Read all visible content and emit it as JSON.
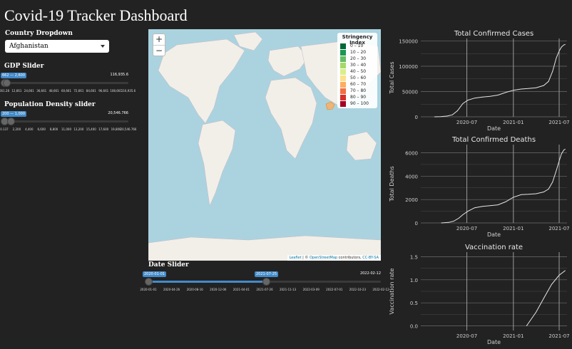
{
  "app": {
    "title": "Covid-19 Tracker Dashboard"
  },
  "country": {
    "label": "Country Dropdown",
    "selected": "Afghanistan"
  },
  "gdp": {
    "label": "GDP Slider",
    "range_badge": "662 — 2,600",
    "max_label": "116,935.6",
    "tick_labels": [
      "661.28",
      "12,661",
      "24,661",
      "36,661",
      "48,661",
      "60,661",
      "72,661",
      "84,661",
      "96,661",
      "108,661",
      "116,935.6"
    ],
    "range_fraction": [
      0.0,
      0.017
    ]
  },
  "popdensity": {
    "label": "Population Density slider",
    "range_badge": "200 — 1,000",
    "max_label": "20,546.766",
    "tick_labels": [
      "0.137",
      "2,200",
      "4,400",
      "6,600",
      "8,800",
      "11,000",
      "13,200",
      "15,400",
      "17,600",
      "19,800",
      "20,546.766"
    ],
    "range_fraction": [
      0.0,
      0.049
    ]
  },
  "date_slider": {
    "label": "Date Slider",
    "from_badge": "2020-01-01",
    "to_badge": "2021-07-25",
    "max_label": "2022-02-12",
    "tick_labels": [
      "2020-01-01",
      "2020-04-26",
      "2020-08-16",
      "2020-12-06",
      "2021-04-01",
      "2021-07-26",
      "2021-11-13",
      "2022-03-09",
      "2022-07-01",
      "2022-10-23",
      "2022-02-12"
    ],
    "range_fraction": [
      0.0,
      0.505
    ]
  },
  "map": {
    "zoom_in": "+",
    "zoom_out": "−",
    "legend": {
      "title": "Stringency Index",
      "items": [
        {
          "label": "0 – 10",
          "color": "#006837"
        },
        {
          "label": "10 – 20",
          "color": "#1a9850"
        },
        {
          "label": "20 – 30",
          "color": "#66bd63"
        },
        {
          "label": "30 – 40",
          "color": "#a6d96a"
        },
        {
          "label": "40 – 50",
          "color": "#d9ef8b"
        },
        {
          "label": "50 – 60",
          "color": "#fee08b"
        },
        {
          "label": "60 – 70",
          "color": "#fdae61"
        },
        {
          "label": "70 – 80",
          "color": "#f46d43"
        },
        {
          "label": "80 – 90",
          "color": "#d73027"
        },
        {
          "label": "90 – 100",
          "color": "#a50026"
        }
      ]
    },
    "attribution": {
      "leaflet": "Leaflet",
      "separator": " | © ",
      "osm": "OpenStreetMap",
      "contrib": " contributors, ",
      "license": "CC-BY-SA"
    },
    "highlight_color": "#fdae61",
    "water_color": "#aad3df",
    "land_color": "#f2efe9"
  },
  "chart_data": [
    {
      "type": "line",
      "title": "Total Confirmed Cases",
      "xlabel": "Date",
      "ylabel": "Total Cases",
      "xlim": [
        "2020-01-01",
        "2021-08-01"
      ],
      "ylim": [
        0,
        155000
      ],
      "yticks": [
        0,
        50000,
        100000,
        150000
      ],
      "ytick_labels": [
        "0",
        "50000",
        "100000",
        "150000"
      ],
      "xticks": [
        "2020-07-01",
        "2021-01-01",
        "2021-07-01"
      ],
      "xtick_labels": [
        "2020-07",
        "2021-01",
        "2021-07"
      ],
      "x": [
        "2020-02-24",
        "2020-03-20",
        "2020-04-15",
        "2020-05-05",
        "2020-05-25",
        "2020-06-15",
        "2020-07-05",
        "2020-08-01",
        "2020-09-01",
        "2020-10-01",
        "2020-11-01",
        "2020-12-01",
        "2021-01-01",
        "2021-02-01",
        "2021-03-01",
        "2021-04-01",
        "2021-05-01",
        "2021-05-20",
        "2021-06-05",
        "2021-06-20",
        "2021-07-01",
        "2021-07-10",
        "2021-07-20",
        "2021-07-25"
      ],
      "y": [
        1,
        300,
        1500,
        4000,
        12000,
        26000,
        33000,
        37000,
        39000,
        40500,
        43000,
        48000,
        52500,
        55000,
        56000,
        57500,
        62000,
        70000,
        90000,
        117000,
        130000,
        138000,
        142500,
        143000
      ],
      "grid": true
    },
    {
      "type": "line",
      "title": "Total Confirmed Deaths",
      "xlabel": "Date",
      "ylabel": "Total Deaths",
      "xlim": [
        "2020-01-01",
        "2021-08-01"
      ],
      "ylim": [
        0,
        6700
      ],
      "yticks": [
        0,
        2000,
        4000,
        6000
      ],
      "ytick_labels": [
        "0",
        "2000",
        "4000",
        "6000"
      ],
      "xticks": [
        "2020-07-01",
        "2021-01-01",
        "2021-07-01"
      ],
      "xtick_labels": [
        "2020-07",
        "2021-01",
        "2021-07"
      ],
      "x": [
        "2020-03-22",
        "2020-04-20",
        "2020-05-10",
        "2020-05-30",
        "2020-06-15",
        "2020-07-05",
        "2020-08-01",
        "2020-09-01",
        "2020-10-01",
        "2020-11-01",
        "2020-12-01",
        "2021-01-01",
        "2021-02-01",
        "2021-03-01",
        "2021-04-01",
        "2021-05-01",
        "2021-05-20",
        "2021-06-05",
        "2021-06-20",
        "2021-07-01",
        "2021-07-10",
        "2021-07-20",
        "2021-07-25"
      ],
      "y": [
        1,
        40,
        150,
        400,
        700,
        1000,
        1300,
        1420,
        1480,
        1550,
        1800,
        2200,
        2420,
        2450,
        2500,
        2650,
        2900,
        3500,
        4500,
        5300,
        5900,
        6250,
        6300
      ],
      "grid": true
    },
    {
      "type": "line",
      "title": "Vaccination rate",
      "xlabel": "Date",
      "ylabel": "Vaccination rate",
      "xlim": [
        "2020-01-01",
        "2021-08-01"
      ],
      "ylim": [
        -0.1,
        1.6
      ],
      "yticks": [
        0.0,
        0.5,
        1.0,
        1.5
      ],
      "ytick_labels": [
        "0.0",
        "0.5",
        "1.0",
        "1.5"
      ],
      "xticks": [
        "2020-07-01",
        "2021-01-01",
        "2021-07-01"
      ],
      "xtick_labels": [
        "2020-07",
        "2021-01",
        "2021-07"
      ],
      "x": [
        "2021-02-22",
        "2021-04-01",
        "2021-05-01",
        "2021-06-01",
        "2021-07-01",
        "2021-07-25"
      ],
      "y": [
        0.0,
        0.3,
        0.6,
        0.9,
        1.1,
        1.2
      ],
      "grid": true
    }
  ]
}
